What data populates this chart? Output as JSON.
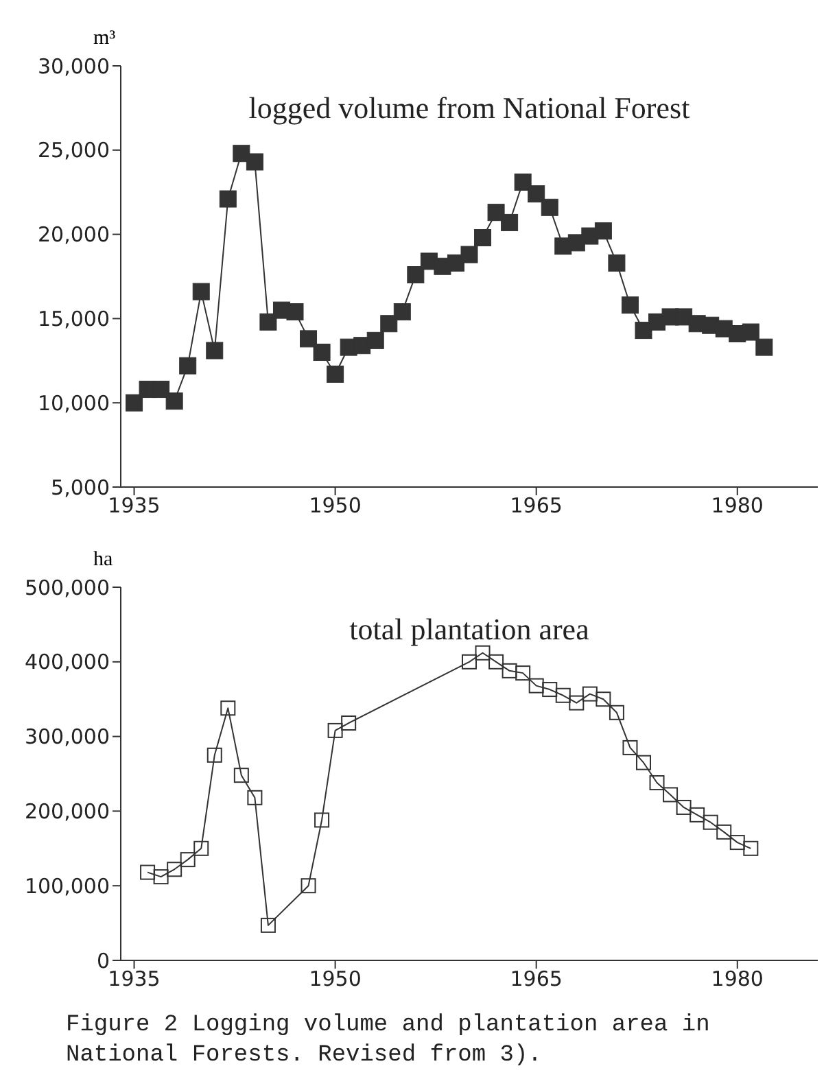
{
  "chart_data": [
    {
      "type": "line",
      "title": "logged volume from National Forest",
      "ylabel": "m³",
      "marker": "square",
      "legend": false,
      "grid": false,
      "x": [
        1935,
        1936,
        1937,
        1938,
        1939,
        1940,
        1941,
        1942,
        1943,
        1944,
        1945,
        1946,
        1947,
        1948,
        1949,
        1950,
        1951,
        1952,
        1953,
        1954,
        1955,
        1956,
        1957,
        1958,
        1959,
        1960,
        1961,
        1962,
        1963,
        1964,
        1965,
        1966,
        1967,
        1968,
        1969,
        1970,
        1971,
        1972,
        1973,
        1974,
        1975,
        1976,
        1977,
        1978,
        1979,
        1980,
        1981,
        1982
      ],
      "series": [
        {
          "color": "#333333",
          "values": [
            10000,
            10800,
            10800,
            10100,
            12200,
            16600,
            13100,
            22100,
            24800,
            24300,
            14800,
            15500,
            15400,
            13800,
            13000,
            11700,
            13300,
            13400,
            13700,
            14700,
            15400,
            17600,
            18400,
            18100,
            18300,
            18800,
            19800,
            21300,
            20700,
            23100,
            22400,
            21600,
            19300,
            19500,
            19900,
            20200,
            18300,
            15800,
            14300,
            14800,
            15100,
            15100,
            14700,
            14600,
            14400,
            14100,
            14200,
            13300
          ]
        }
      ],
      "xlim": [
        1934,
        1986
      ],
      "xticks": [
        1935,
        1950,
        1965,
        1980
      ],
      "ylim": [
        5000,
        30000
      ],
      "yticks": [
        {
          "value": 5000,
          "label": "5,000"
        },
        {
          "value": 10000,
          "label": "10,000"
        },
        {
          "value": 15000,
          "label": "15,000"
        },
        {
          "value": 20000,
          "label": "20,000"
        },
        {
          "value": 25000,
          "label": "25,000"
        },
        {
          "value": 30000,
          "label": "30,000"
        }
      ]
    },
    {
      "type": "line",
      "title": "total plantation area",
      "ylabel": "ha",
      "marker": "square",
      "legend": false,
      "grid": false,
      "x": [
        1936,
        1937,
        1938,
        1939,
        1940,
        1941,
        1942,
        1943,
        1944,
        1945,
        1948,
        1949,
        1950,
        1951,
        1960,
        1961,
        1962,
        1963,
        1964,
        1965,
        1966,
        1967,
        1968,
        1969,
        1970,
        1971,
        1972,
        1973,
        1974,
        1975,
        1976,
        1977,
        1978,
        1979,
        1980,
        1981
      ],
      "series": [
        {
          "color": "#333333",
          "values": [
            118000,
            112000,
            122000,
            135000,
            150000,
            275000,
            338000,
            248000,
            218000,
            47000,
            100000,
            188000,
            308000,
            318000,
            400000,
            412000,
            400000,
            388000,
            385000,
            368000,
            363000,
            355000,
            345000,
            357000,
            350000,
            332000,
            285000,
            265000,
            238000,
            222000,
            205000,
            195000,
            185000,
            172000,
            158000,
            150000
          ]
        }
      ],
      "xlim": [
        1934,
        1986
      ],
      "xticks": [
        1935,
        1950,
        1965,
        1980
      ],
      "ylim": [
        0,
        500000
      ],
      "yticks": [
        0,
        {
          "value": 100000,
          "label": "100,000"
        },
        {
          "value": 200000,
          "label": "200,000"
        },
        {
          "value": 300000,
          "label": "300,000"
        },
        {
          "value": 400000,
          "label": "400,000"
        },
        {
          "value": 500000,
          "label": "500,000"
        }
      ],
      "annotations": [
        "Figure 2  Logging volume and plantation area in National Forests.  Revised from 3)."
      ]
    }
  ]
}
